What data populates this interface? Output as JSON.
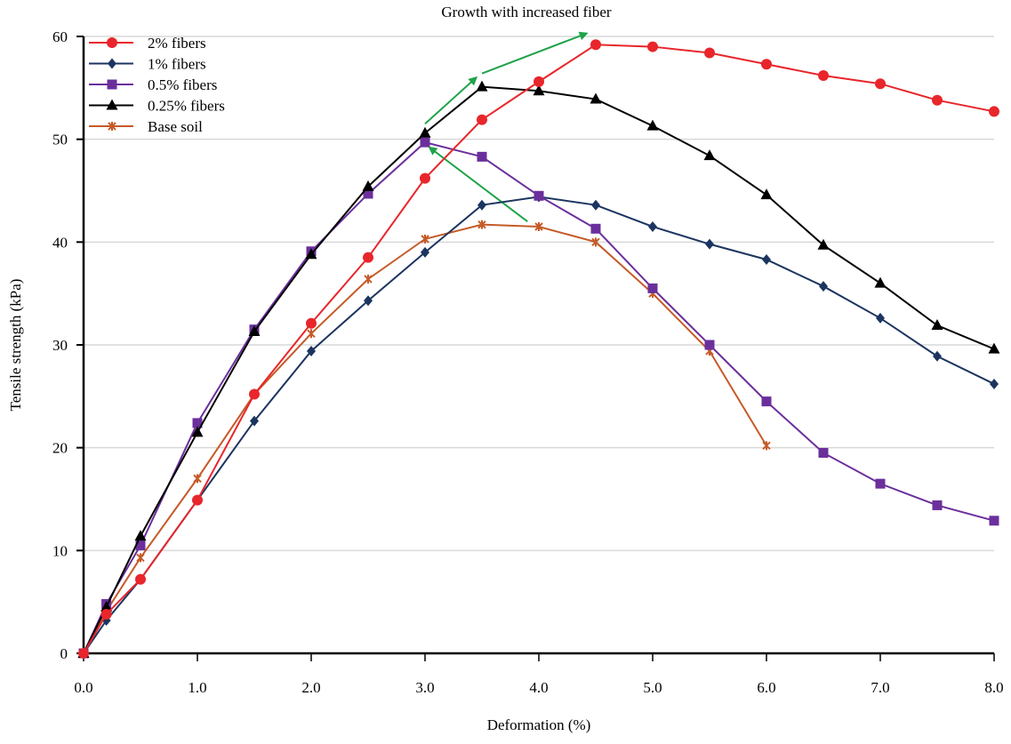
{
  "chart_data": {
    "type": "line",
    "title": "Growth with increased fiber",
    "xlabel": "Deformation (%)",
    "ylabel": "Tensile strength (kPa)",
    "xlim": [
      0,
      8
    ],
    "ylim": [
      0,
      60
    ],
    "xticks": [
      "0.0",
      "1.0",
      "2.0",
      "3.0",
      "4.0",
      "5.0",
      "6.0",
      "7.0",
      "8.0"
    ],
    "yticks": [
      "0",
      "10",
      "20",
      "30",
      "40",
      "50",
      "60"
    ],
    "grid": "horizontal",
    "legend_position": "top-left",
    "series": [
      {
        "name": "2% fibers",
        "color": "#e8262b",
        "marker": "circle",
        "x": [
          0,
          0.2,
          0.5,
          1,
          1.5,
          2,
          2.5,
          3,
          3.5,
          4,
          4.5,
          5,
          5.5,
          6,
          6.5,
          7,
          7.5,
          8
        ],
        "y": [
          0,
          3.8,
          7.2,
          14.9,
          25.2,
          32.1,
          38.5,
          46.2,
          51.9,
          55.6,
          59.2,
          59.0,
          58.4,
          57.3,
          56.2,
          55.4,
          53.8,
          52.7
        ]
      },
      {
        "name": "1% fibers",
        "color": "#1c3560",
        "marker": "diamond",
        "x": [
          0,
          0.2,
          0.5,
          1,
          1.5,
          2,
          2.5,
          3,
          3.5,
          4,
          4.5,
          5,
          5.5,
          6,
          6.5,
          7,
          7.5,
          8
        ],
        "y": [
          0,
          3.2,
          7.2,
          14.9,
          22.6,
          29.4,
          34.3,
          39.0,
          43.6,
          44.4,
          43.6,
          41.5,
          39.8,
          38.3,
          35.7,
          32.6,
          28.9,
          26.2
        ]
      },
      {
        "name": "0.5% fibers",
        "color": "#6b2f9c",
        "marker": "square",
        "x": [
          0,
          0.2,
          0.5,
          1,
          1.5,
          2,
          2.5,
          3,
          3.5,
          4,
          4.5,
          5,
          5.5,
          6,
          6.5,
          7,
          7.5,
          8
        ],
        "y": [
          0,
          4.8,
          10.5,
          22.4,
          31.5,
          39.1,
          44.7,
          49.7,
          48.3,
          44.5,
          41.3,
          35.5,
          30.0,
          24.5,
          19.5,
          16.5,
          14.4,
          12.9
        ]
      },
      {
        "name": "0.25% fibers",
        "color": "#000000",
        "marker": "triangle",
        "x": [
          0,
          0.2,
          0.5,
          1,
          1.5,
          2,
          2.5,
          3,
          3.5,
          4,
          4.5,
          5,
          5.5,
          6,
          6.5,
          7,
          7.5,
          8
        ],
        "y": [
          0,
          4.5,
          11.4,
          21.5,
          31.3,
          38.8,
          45.4,
          50.6,
          55.1,
          54.7,
          53.9,
          51.3,
          48.4,
          44.6,
          39.7,
          36.0,
          31.9,
          29.6
        ]
      },
      {
        "name": "Base soil",
        "color": "#c55a28",
        "marker": "asterisk",
        "x": [
          0,
          0.2,
          0.5,
          1,
          1.5,
          2,
          2.5,
          3,
          3.5,
          4,
          4.5,
          5,
          5.5,
          6
        ],
        "y": [
          0,
          4.1,
          9.3,
          17.0,
          25.2,
          31.1,
          36.4,
          40.3,
          41.7,
          41.5,
          40.0,
          35.0,
          29.4,
          20.2
        ]
      }
    ],
    "annotations": [
      {
        "type": "arrow",
        "color": "#1fa34a",
        "from": [
          3.0,
          51.5
        ],
        "to": [
          3.45,
          56.0
        ]
      },
      {
        "type": "arrow",
        "color": "#1fa34a",
        "from": [
          3.5,
          56.4
        ],
        "to": [
          4.42,
          60.3
        ]
      },
      {
        "type": "arrow",
        "color": "#1fa34a",
        "from": [
          3.9,
          42.0
        ],
        "to": [
          3.04,
          49.2
        ]
      }
    ]
  }
}
